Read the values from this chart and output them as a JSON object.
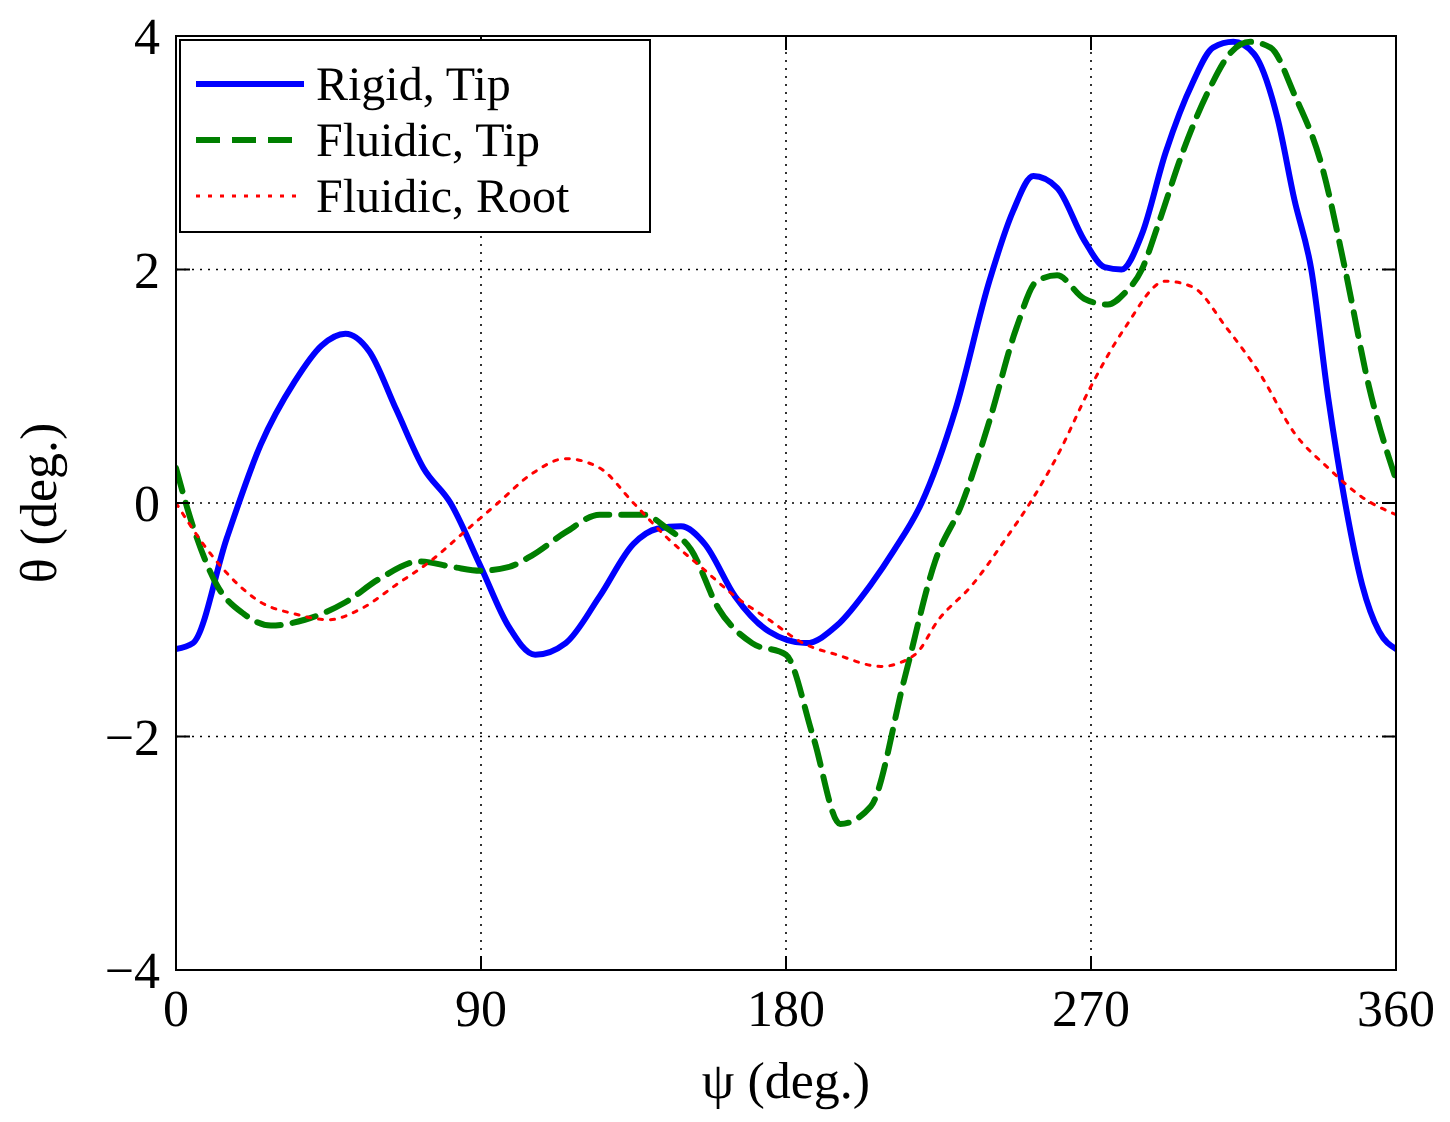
{
  "chart_data": {
    "type": "line",
    "xlabel": "ψ (deg.)",
    "ylabel": "θ (deg.)",
    "xlim": [
      0,
      360
    ],
    "ylim": [
      -4,
      4
    ],
    "xticks": [
      0,
      90,
      180,
      270,
      360
    ],
    "yticks": [
      -4,
      -2,
      0,
      2,
      4
    ],
    "grid": true,
    "legend": "top left",
    "marker": "none",
    "series": [
      {
        "name": "Rigid, Tip",
        "color": "#0000ff",
        "line_style": "solid",
        "x": [
          0,
          5,
          15,
          25,
          35,
          43,
          50,
          57,
          65,
          73,
          81,
          90,
          98,
          106,
          115,
          125,
          135,
          142,
          149,
          156,
          165,
          175,
          186,
          195,
          205,
          212,
          220,
          230,
          240,
          247,
          253,
          260,
          268,
          274,
          279,
          285,
          292,
          300,
          306,
          312,
          318,
          325,
          330,
          335,
          340,
          345,
          350,
          355,
          360
        ],
        "values": [
          -1.25,
          -1.2,
          -0.3,
          0.5,
          1.04,
          1.35,
          1.45,
          1.3,
          0.8,
          0.3,
          0,
          -0.55,
          -1.05,
          -1.3,
          -1.2,
          -0.8,
          -0.35,
          -0.22,
          -0.2,
          -0.35,
          -0.8,
          -1.1,
          -1.2,
          -1.05,
          -0.7,
          -0.4,
          0,
          0.8,
          1.9,
          2.5,
          2.8,
          2.7,
          2.25,
          2.02,
          2.0,
          2.3,
          3.0,
          3.6,
          3.9,
          3.95,
          3.85,
          3.3,
          2.6,
          2.0,
          0.9,
          0,
          -0.7,
          -1.1,
          -1.25
        ]
      },
      {
        "name": "Fluidic, Tip",
        "color": "#007f00",
        "line_style": "dashed",
        "x": [
          0,
          5,
          12,
          20,
          28,
          38,
          50,
          60,
          72,
          82,
          90,
          98,
          105,
          115,
          125,
          138,
          145,
          152,
          160,
          170,
          180,
          188,
          196,
          205,
          215,
          224,
          232,
          240,
          248,
          254,
          260,
          268,
          275,
          280,
          285,
          290,
          297,
          305,
          311,
          317,
          323,
          330,
          338,
          345,
          352,
          360
        ],
        "values": [
          0.3,
          -0.2,
          -0.7,
          -0.95,
          -1.05,
          -1.0,
          -0.85,
          -0.65,
          -0.5,
          -0.55,
          -0.58,
          -0.55,
          -0.45,
          -0.25,
          -0.1,
          -0.1,
          -0.22,
          -0.4,
          -0.9,
          -1.2,
          -1.3,
          -2.0,
          -2.75,
          -2.6,
          -1.5,
          -0.5,
          0,
          0.7,
          1.5,
          1.9,
          1.95,
          1.75,
          1.7,
          1.8,
          2.0,
          2.4,
          3.0,
          3.55,
          3.85,
          3.95,
          3.9,
          3.5,
          2.9,
          2.0,
          1.0,
          0.2
        ]
      },
      {
        "name": "Fluidic, Root",
        "color": "#ff0000",
        "line_style": "dotted",
        "x": [
          0,
          8,
          15,
          25,
          35,
          45,
          55,
          65,
          75,
          85,
          95,
          105,
          115,
          125,
          135,
          145,
          155,
          165,
          175,
          185,
          195,
          208,
          218,
          225,
          235,
          245,
          252,
          260,
          270,
          280,
          292,
          300,
          310,
          320,
          330,
          340,
          350,
          360
        ],
        "values": [
          0,
          -0.35,
          -0.6,
          -0.85,
          -0.95,
          -1.0,
          -0.9,
          -0.7,
          -0.5,
          -0.25,
          0,
          0.25,
          0.38,
          0.3,
          0,
          -0.3,
          -0.55,
          -0.8,
          -1.0,
          -1.2,
          -1.3,
          -1.4,
          -1.3,
          -1.0,
          -0.7,
          -0.3,
          0,
          0.4,
          1.0,
          1.5,
          1.9,
          1.85,
          1.5,
          1.1,
          0.6,
          0.3,
          0.05,
          -0.1
        ]
      }
    ]
  }
}
